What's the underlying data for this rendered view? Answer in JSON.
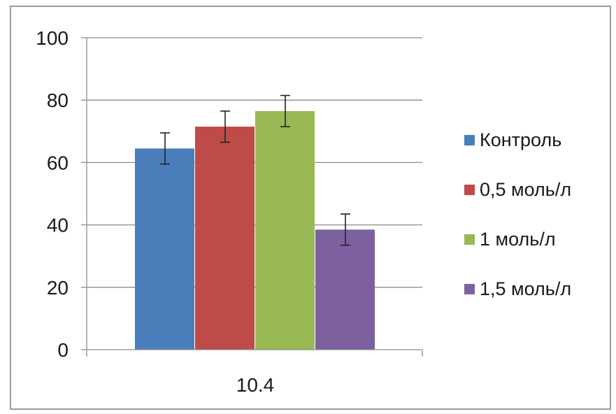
{
  "chart_data": {
    "type": "bar",
    "categories": [
      "10.4"
    ],
    "series": [
      {
        "name": "Контроль",
        "values": [
          64.5
        ],
        "error": [
          5
        ],
        "color": "#4a7ebb"
      },
      {
        "name": "0,5 моль/л",
        "values": [
          71.5
        ],
        "error": [
          5
        ],
        "color": "#be4b48"
      },
      {
        "name": "1 моль/л",
        "values": [
          76.5
        ],
        "error": [
          5
        ],
        "color": "#98b954"
      },
      {
        "name": "1,5 моль/л",
        "values": [
          38.5
        ],
        "error": [
          5
        ],
        "color": "#7d60a0"
      }
    ],
    "yticks": [
      "0",
      "20",
      "40",
      "60",
      "80",
      "100"
    ],
    "ylim": [
      0,
      100
    ],
    "grid": true,
    "legend_position": "right"
  }
}
